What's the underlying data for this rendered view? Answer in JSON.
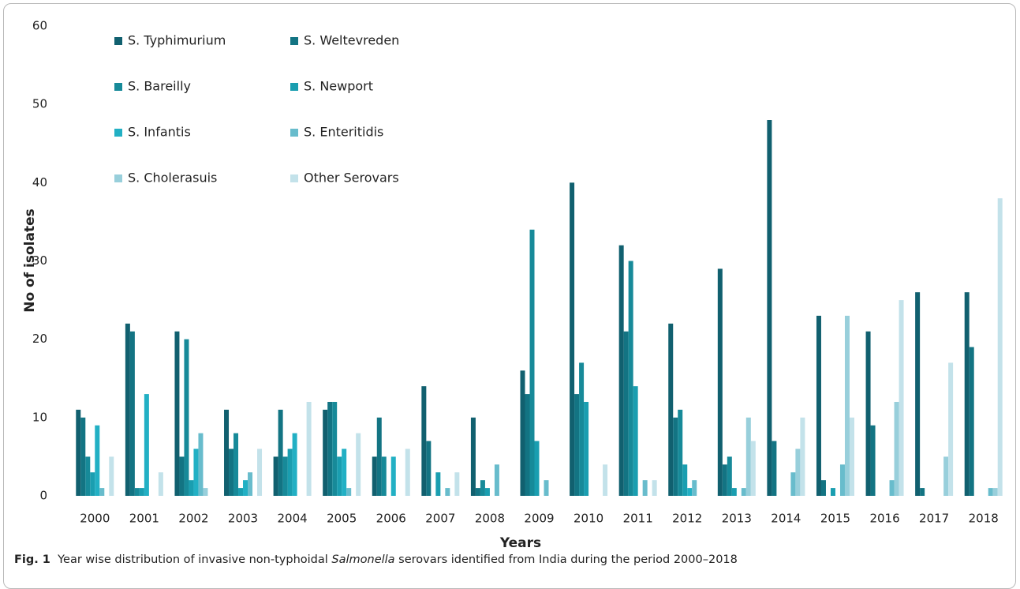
{
  "chart_data": {
    "type": "bar",
    "caption": {
      "label": "Fig. 1",
      "text_before": "  Year wise distribution of invasive non-typhoidal ",
      "italic": "Salmonella",
      "text_after": " serovars identified from India during the period 2000–2018"
    },
    "x_label": "Years",
    "y_label": "No of isolates",
    "categories": [
      "2000",
      "2001",
      "2002",
      "2003",
      "2004",
      "2005",
      "2006",
      "2007",
      "2008",
      "2009",
      "2010",
      "2011",
      "2012",
      "2013",
      "2014",
      "2015",
      "2016",
      "2017",
      "2018"
    ],
    "series": [
      {
        "name": "S. Typhimurium",
        "color": "#11606f",
        "values": [
          11,
          22,
          21,
          11,
          5,
          11,
          5,
          14,
          10,
          16,
          40,
          32,
          22,
          29,
          48,
          23,
          21,
          26,
          26
        ]
      },
      {
        "name": "S. Weltevreden",
        "color": "#137483",
        "values": [
          10,
          21,
          5,
          6,
          11,
          12,
          10,
          7,
          1,
          13,
          13,
          21,
          10,
          4,
          7,
          2,
          9,
          1,
          19
        ]
      },
      {
        "name": "S. Bareilly",
        "color": "#178a99",
        "values": [
          5,
          1,
          20,
          8,
          5,
          12,
          5,
          0,
          2,
          34,
          17,
          30,
          11,
          5,
          0,
          0,
          0,
          0,
          0
        ]
      },
      {
        "name": "S. Newport",
        "color": "#1a9eb0",
        "values": [
          3,
          1,
          2,
          1,
          6,
          5,
          0,
          3,
          1,
          7,
          12,
          14,
          4,
          1,
          0,
          1,
          0,
          0,
          0
        ]
      },
      {
        "name": "S. Infantis",
        "color": "#22b0c4",
        "values": [
          9,
          13,
          6,
          2,
          8,
          6,
          5,
          0,
          0,
          0,
          0,
          0,
          1,
          0,
          0,
          0,
          0,
          0,
          0
        ]
      },
      {
        "name": "S. Enteritidis",
        "color": "#68bccc",
        "values": [
          1,
          0,
          8,
          3,
          0,
          1,
          0,
          1,
          4,
          2,
          0,
          2,
          2,
          1,
          3,
          4,
          2,
          0,
          1
        ]
      },
      {
        "name": "S. Cholerasuis",
        "color": "#98cfdb",
        "values": [
          0,
          0,
          1,
          0,
          0,
          0,
          0,
          0,
          0,
          0,
          0,
          0,
          0,
          10,
          6,
          23,
          12,
          5,
          1
        ]
      },
      {
        "name": "Other Serovars",
        "color": "#c3e2ea",
        "values": [
          5,
          3,
          0,
          6,
          12,
          8,
          6,
          3,
          0,
          0,
          4,
          2,
          0,
          7,
          10,
          10,
          25,
          17,
          38
        ]
      }
    ],
    "ylim": [
      0,
      60
    ],
    "yticks": [
      0,
      10,
      20,
      30,
      40,
      50,
      60
    ],
    "grid": false
  }
}
